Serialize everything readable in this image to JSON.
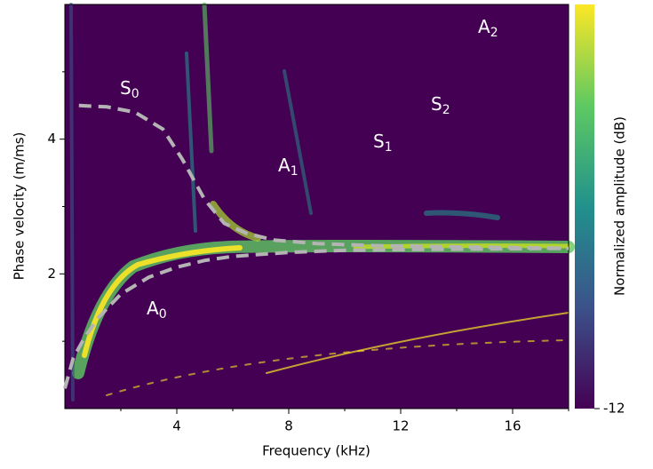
{
  "chart_data": {
    "type": "dispersion",
    "x_label": "Frequency (kHz)",
    "y_label": "Phase velocity (m/ms)",
    "xlim": [
      0,
      18
    ],
    "xticks": [
      4,
      8,
      12,
      16
    ],
    "xminor": [
      2,
      6,
      10,
      14,
      18
    ],
    "ylim": [
      0,
      6
    ],
    "yticks": [
      2,
      4
    ],
    "yminor": [
      1,
      3,
      5
    ],
    "colorbar": {
      "label": "Normalized amplitude (dB)",
      "lim": [
        -12,
        0
      ],
      "ticks": [
        -12
      ]
    },
    "series": [
      {
        "name": "S0",
        "color": "#b4b4b4",
        "x": [
          0.5,
          1.5,
          2.5,
          3.5,
          4.2,
          5,
          5.7,
          6.5,
          7.5,
          9,
          11,
          14,
          18
        ],
        "y": [
          4.5,
          4.48,
          4.4,
          4.15,
          3.7,
          3.1,
          2.75,
          2.6,
          2.5,
          2.45,
          2.42,
          2.4,
          2.38
        ]
      },
      {
        "name": "A0",
        "color": "#b4b4b4",
        "x": [
          0,
          0.3,
          0.7,
          1.2,
          2,
          3,
          4,
          5,
          6,
          8,
          10,
          12,
          15,
          18
        ],
        "y": [
          0.3,
          0.75,
          1.05,
          1.35,
          1.7,
          1.95,
          2.1,
          2.2,
          2.26,
          2.32,
          2.35,
          2.36,
          2.37,
          2.38
        ]
      }
    ],
    "annotations": [
      {
        "text": "S",
        "sub": "0"
      },
      {
        "text": "A",
        "sub": "0"
      },
      {
        "text": "A",
        "sub": "1"
      },
      {
        "text": "S",
        "sub": "1"
      },
      {
        "text": "S",
        "sub": "2"
      },
      {
        "text": "A",
        "sub": "2"
      }
    ]
  }
}
